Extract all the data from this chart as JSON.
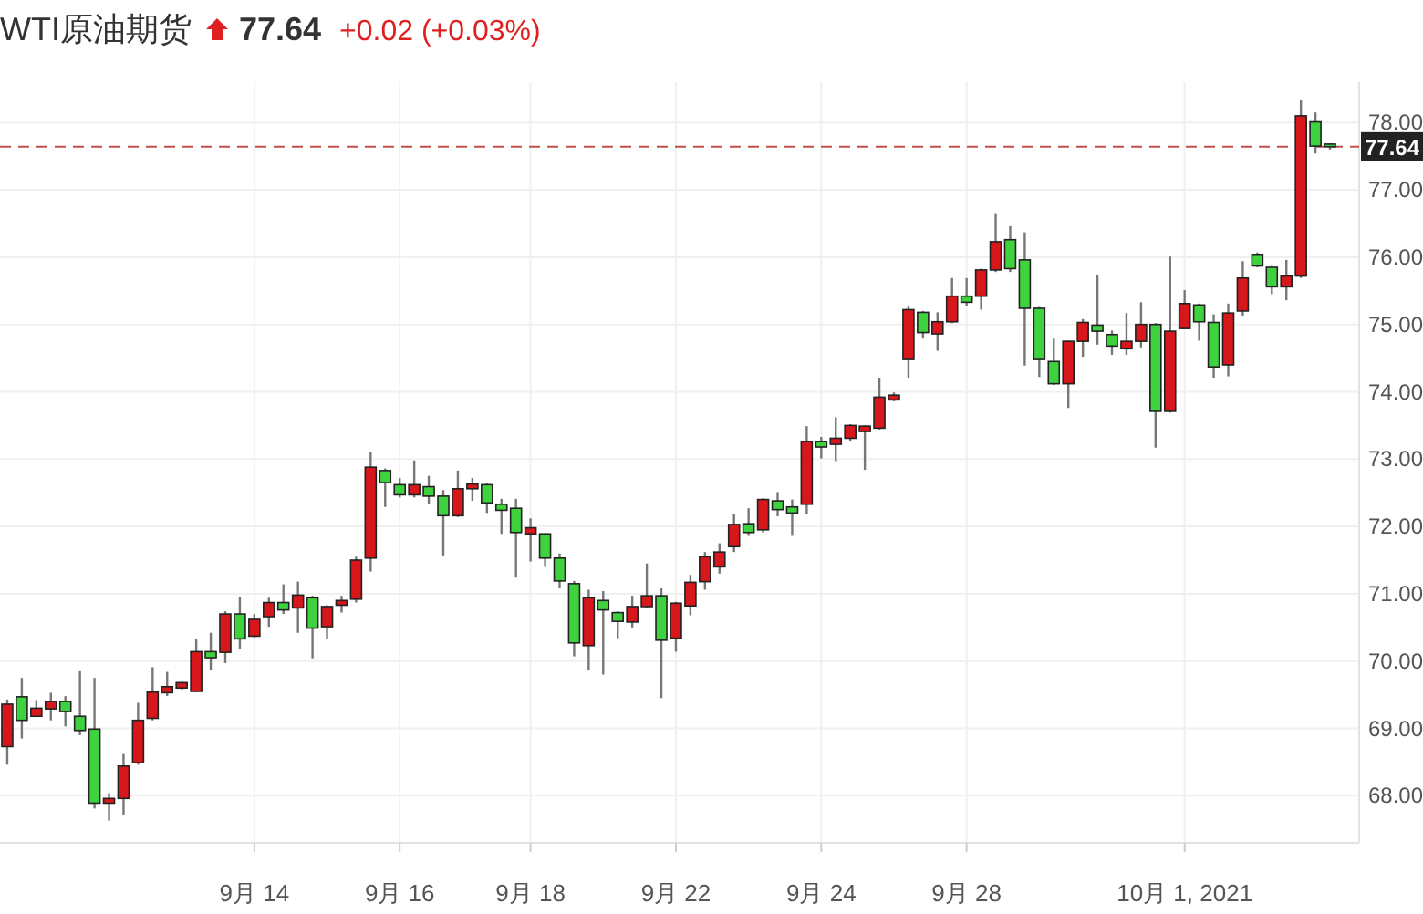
{
  "chart_data": {
    "type": "candlestick",
    "title": "WTI原油期货",
    "annotations": [
      "77.64",
      "+0.02 (+0.03%)"
    ],
    "categories": [
      null,
      null,
      null,
      null,
      null,
      null,
      null,
      null,
      null,
      null,
      null,
      null,
      null,
      null,
      null,
      null,
      null,
      "9月 14",
      null,
      null,
      null,
      null,
      null,
      null,
      null,
      null,
      null,
      "9月 16",
      null,
      null,
      null,
      null,
      null,
      null,
      null,
      null,
      "9月 18",
      null,
      null,
      null,
      null,
      null,
      null,
      null,
      null,
      null,
      "9月 22",
      null,
      null,
      null,
      null,
      null,
      null,
      null,
      null,
      null,
      "9月 24",
      null,
      null,
      null,
      null,
      null,
      null,
      null,
      null,
      null,
      "9月 28",
      null,
      null,
      null,
      null,
      null,
      null,
      null,
      null,
      null,
      null,
      null,
      null,
      null,
      null,
      "10月 1, 2021",
      null,
      null,
      null,
      null,
      null,
      null,
      null,
      null,
      null,
      null
    ],
    "ohlc": [
      [
        68.73,
        69.43,
        68.46,
        69.36
      ],
      [
        69.47,
        69.75,
        68.85,
        69.12
      ],
      [
        69.18,
        69.42,
        69.17,
        69.3
      ],
      [
        69.29,
        69.53,
        69.12,
        69.4
      ],
      [
        69.4,
        69.48,
        69.03,
        69.25
      ],
      [
        69.18,
        69.85,
        68.9,
        68.97
      ],
      [
        68.99,
        69.75,
        67.81,
        67.89
      ],
      [
        67.89,
        68.04,
        67.63,
        67.96
      ],
      [
        67.96,
        68.62,
        67.72,
        68.44
      ],
      [
        68.49,
        69.38,
        68.46,
        69.12
      ],
      [
        69.15,
        69.91,
        69.12,
        69.54
      ],
      [
        69.53,
        69.84,
        69.48,
        69.62
      ],
      [
        69.6,
        69.69,
        69.58,
        69.68
      ],
      [
        69.55,
        70.33,
        69.54,
        70.14
      ],
      [
        70.14,
        70.42,
        69.86,
        70.05
      ],
      [
        70.13,
        70.74,
        69.97,
        70.7
      ],
      [
        70.7,
        70.95,
        70.18,
        70.33
      ],
      [
        70.37,
        70.7,
        70.35,
        70.62
      ],
      [
        70.66,
        70.94,
        70.51,
        70.87
      ],
      [
        70.87,
        71.14,
        70.7,
        70.76
      ],
      [
        70.79,
        71.18,
        70.42,
        70.98
      ],
      [
        70.94,
        70.97,
        70.04,
        70.49
      ],
      [
        70.51,
        70.83,
        70.33,
        70.81
      ],
      [
        70.83,
        70.97,
        70.72,
        70.9
      ],
      [
        70.92,
        71.55,
        70.87,
        71.5
      ],
      [
        71.53,
        73.1,
        71.33,
        72.88
      ],
      [
        72.83,
        72.86,
        72.29,
        72.65
      ],
      [
        72.62,
        72.72,
        72.43,
        72.47
      ],
      [
        72.47,
        72.98,
        72.43,
        72.62
      ],
      [
        72.59,
        72.75,
        72.34,
        72.45
      ],
      [
        72.45,
        72.54,
        71.57,
        72.16
      ],
      [
        72.16,
        72.83,
        72.14,
        72.56
      ],
      [
        72.56,
        72.72,
        72.38,
        72.63
      ],
      [
        72.62,
        72.65,
        72.2,
        72.35
      ],
      [
        72.33,
        72.41,
        71.89,
        72.24
      ],
      [
        72.27,
        72.41,
        71.24,
        71.91
      ],
      [
        71.89,
        72.12,
        71.48,
        71.98
      ],
      [
        71.89,
        71.9,
        71.4,
        71.53
      ],
      [
        71.53,
        71.6,
        71.08,
        71.19
      ],
      [
        71.15,
        71.19,
        70.07,
        70.27
      ],
      [
        70.23,
        71.06,
        69.86,
        70.94
      ],
      [
        70.9,
        71.04,
        69.8,
        70.76
      ],
      [
        70.72,
        70.74,
        70.34,
        70.59
      ],
      [
        70.58,
        70.97,
        70.5,
        70.81
      ],
      [
        70.81,
        71.45,
        70.79,
        70.97
      ],
      [
        70.97,
        71.08,
        69.45,
        70.31
      ],
      [
        70.34,
        70.88,
        70.14,
        70.86
      ],
      [
        70.82,
        71.28,
        70.68,
        71.17
      ],
      [
        71.18,
        71.62,
        71.06,
        71.55
      ],
      [
        71.4,
        71.75,
        71.3,
        71.62
      ],
      [
        71.7,
        72.18,
        71.62,
        72.03
      ],
      [
        72.04,
        72.27,
        71.86,
        71.91
      ],
      [
        71.95,
        72.42,
        71.91,
        72.4
      ],
      [
        72.38,
        72.51,
        72.15,
        72.25
      ],
      [
        72.29,
        72.4,
        71.86,
        72.2
      ],
      [
        72.33,
        73.49,
        72.18,
        73.26
      ],
      [
        73.26,
        73.33,
        73.01,
        73.18
      ],
      [
        73.22,
        73.62,
        72.97,
        73.31
      ],
      [
        73.31,
        73.52,
        73.26,
        73.5
      ],
      [
        73.41,
        73.5,
        72.84,
        73.49
      ],
      [
        73.46,
        74.21,
        73.44,
        73.92
      ],
      [
        73.88,
        73.99,
        73.86,
        73.95
      ],
      [
        74.48,
        75.27,
        74.21,
        75.22
      ],
      [
        75.18,
        75.2,
        74.79,
        74.88
      ],
      [
        74.86,
        75.18,
        74.61,
        75.04
      ],
      [
        75.04,
        75.69,
        75.02,
        75.42
      ],
      [
        75.42,
        75.69,
        75.27,
        75.33
      ],
      [
        75.42,
        75.83,
        75.22,
        75.81
      ],
      [
        75.81,
        76.64,
        75.78,
        76.23
      ],
      [
        76.26,
        76.46,
        75.78,
        75.83
      ],
      [
        75.96,
        76.37,
        74.39,
        75.24
      ],
      [
        75.24,
        75.26,
        74.22,
        74.48
      ],
      [
        74.45,
        74.79,
        74.1,
        74.12
      ],
      [
        74.12,
        74.76,
        73.76,
        74.75
      ],
      [
        74.75,
        75.08,
        74.52,
        75.03
      ],
      [
        74.99,
        75.74,
        74.7,
        74.9
      ],
      [
        74.85,
        74.91,
        74.55,
        74.68
      ],
      [
        74.64,
        75.17,
        74.55,
        74.75
      ],
      [
        74.75,
        75.33,
        74.66,
        75.0
      ],
      [
        75.0,
        75.02,
        73.17,
        73.71
      ],
      [
        73.71,
        76.01,
        73.69,
        74.9
      ],
      [
        74.94,
        75.51,
        74.93,
        75.31
      ],
      [
        75.29,
        75.31,
        74.76,
        75.04
      ],
      [
        75.03,
        75.15,
        74.21,
        74.37
      ],
      [
        74.4,
        75.31,
        74.23,
        75.17
      ],
      [
        75.2,
        75.94,
        75.13,
        75.69
      ],
      [
        76.03,
        76.07,
        75.85,
        75.87
      ],
      [
        75.85,
        75.87,
        75.45,
        75.56
      ],
      [
        75.56,
        75.96,
        75.36,
        75.72
      ],
      [
        75.72,
        78.33,
        75.69,
        78.1
      ],
      [
        78.01,
        78.15,
        77.54,
        77.65
      ],
      [
        77.68,
        77.69,
        77.6,
        77.64
      ]
    ],
    "ylim": [
      67.3,
      78.6
    ],
    "yticks": [
      {
        "value": 68,
        "label": "68.00"
      },
      {
        "value": 69,
        "label": "69.00"
      },
      {
        "value": 70,
        "label": "70.00"
      },
      {
        "value": 71,
        "label": "71.00"
      },
      {
        "value": 72,
        "label": "72.00"
      },
      {
        "value": 73,
        "label": "73.00"
      },
      {
        "value": 74,
        "label": "74.00"
      },
      {
        "value": 75,
        "label": "75.00"
      },
      {
        "value": 76,
        "label": "76.00"
      },
      {
        "value": 77,
        "label": "77.00"
      },
      {
        "value": 78,
        "label": "78.00"
      }
    ],
    "ref_lines": [
      {
        "axis": "y",
        "value": 77.64,
        "label": "77.64",
        "color": "#c0504d",
        "line_style": "dashed"
      }
    ],
    "grid": true
  }
}
